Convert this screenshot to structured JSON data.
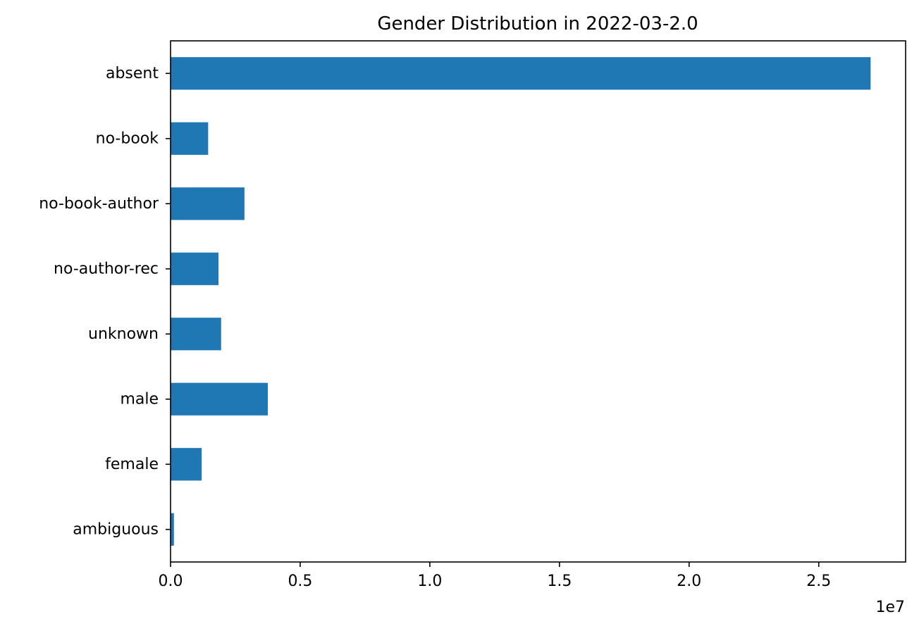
{
  "chart_data": {
    "type": "bar",
    "orientation": "horizontal",
    "title": "Gender Distribution in 2022-03-2.0",
    "xlabel": "",
    "ylabel": "",
    "categories": [
      "absent",
      "no-book",
      "no-book-author",
      "no-author-rec",
      "unknown",
      "male",
      "female",
      "ambiguous"
    ],
    "values": [
      27000000,
      1450000,
      2850000,
      1850000,
      1950000,
      3750000,
      1200000,
      130000
    ],
    "xlim": [
      0,
      28350000
    ],
    "xticks": [
      0,
      5000000,
      10000000,
      15000000,
      20000000,
      25000000
    ],
    "xtick_labels": [
      "0.0",
      "0.5",
      "1.0",
      "1.5",
      "2.0",
      "2.5"
    ],
    "x_offset_label": "1e7",
    "grid": false,
    "legend": "none",
    "bar_color": "#1f77b4"
  }
}
